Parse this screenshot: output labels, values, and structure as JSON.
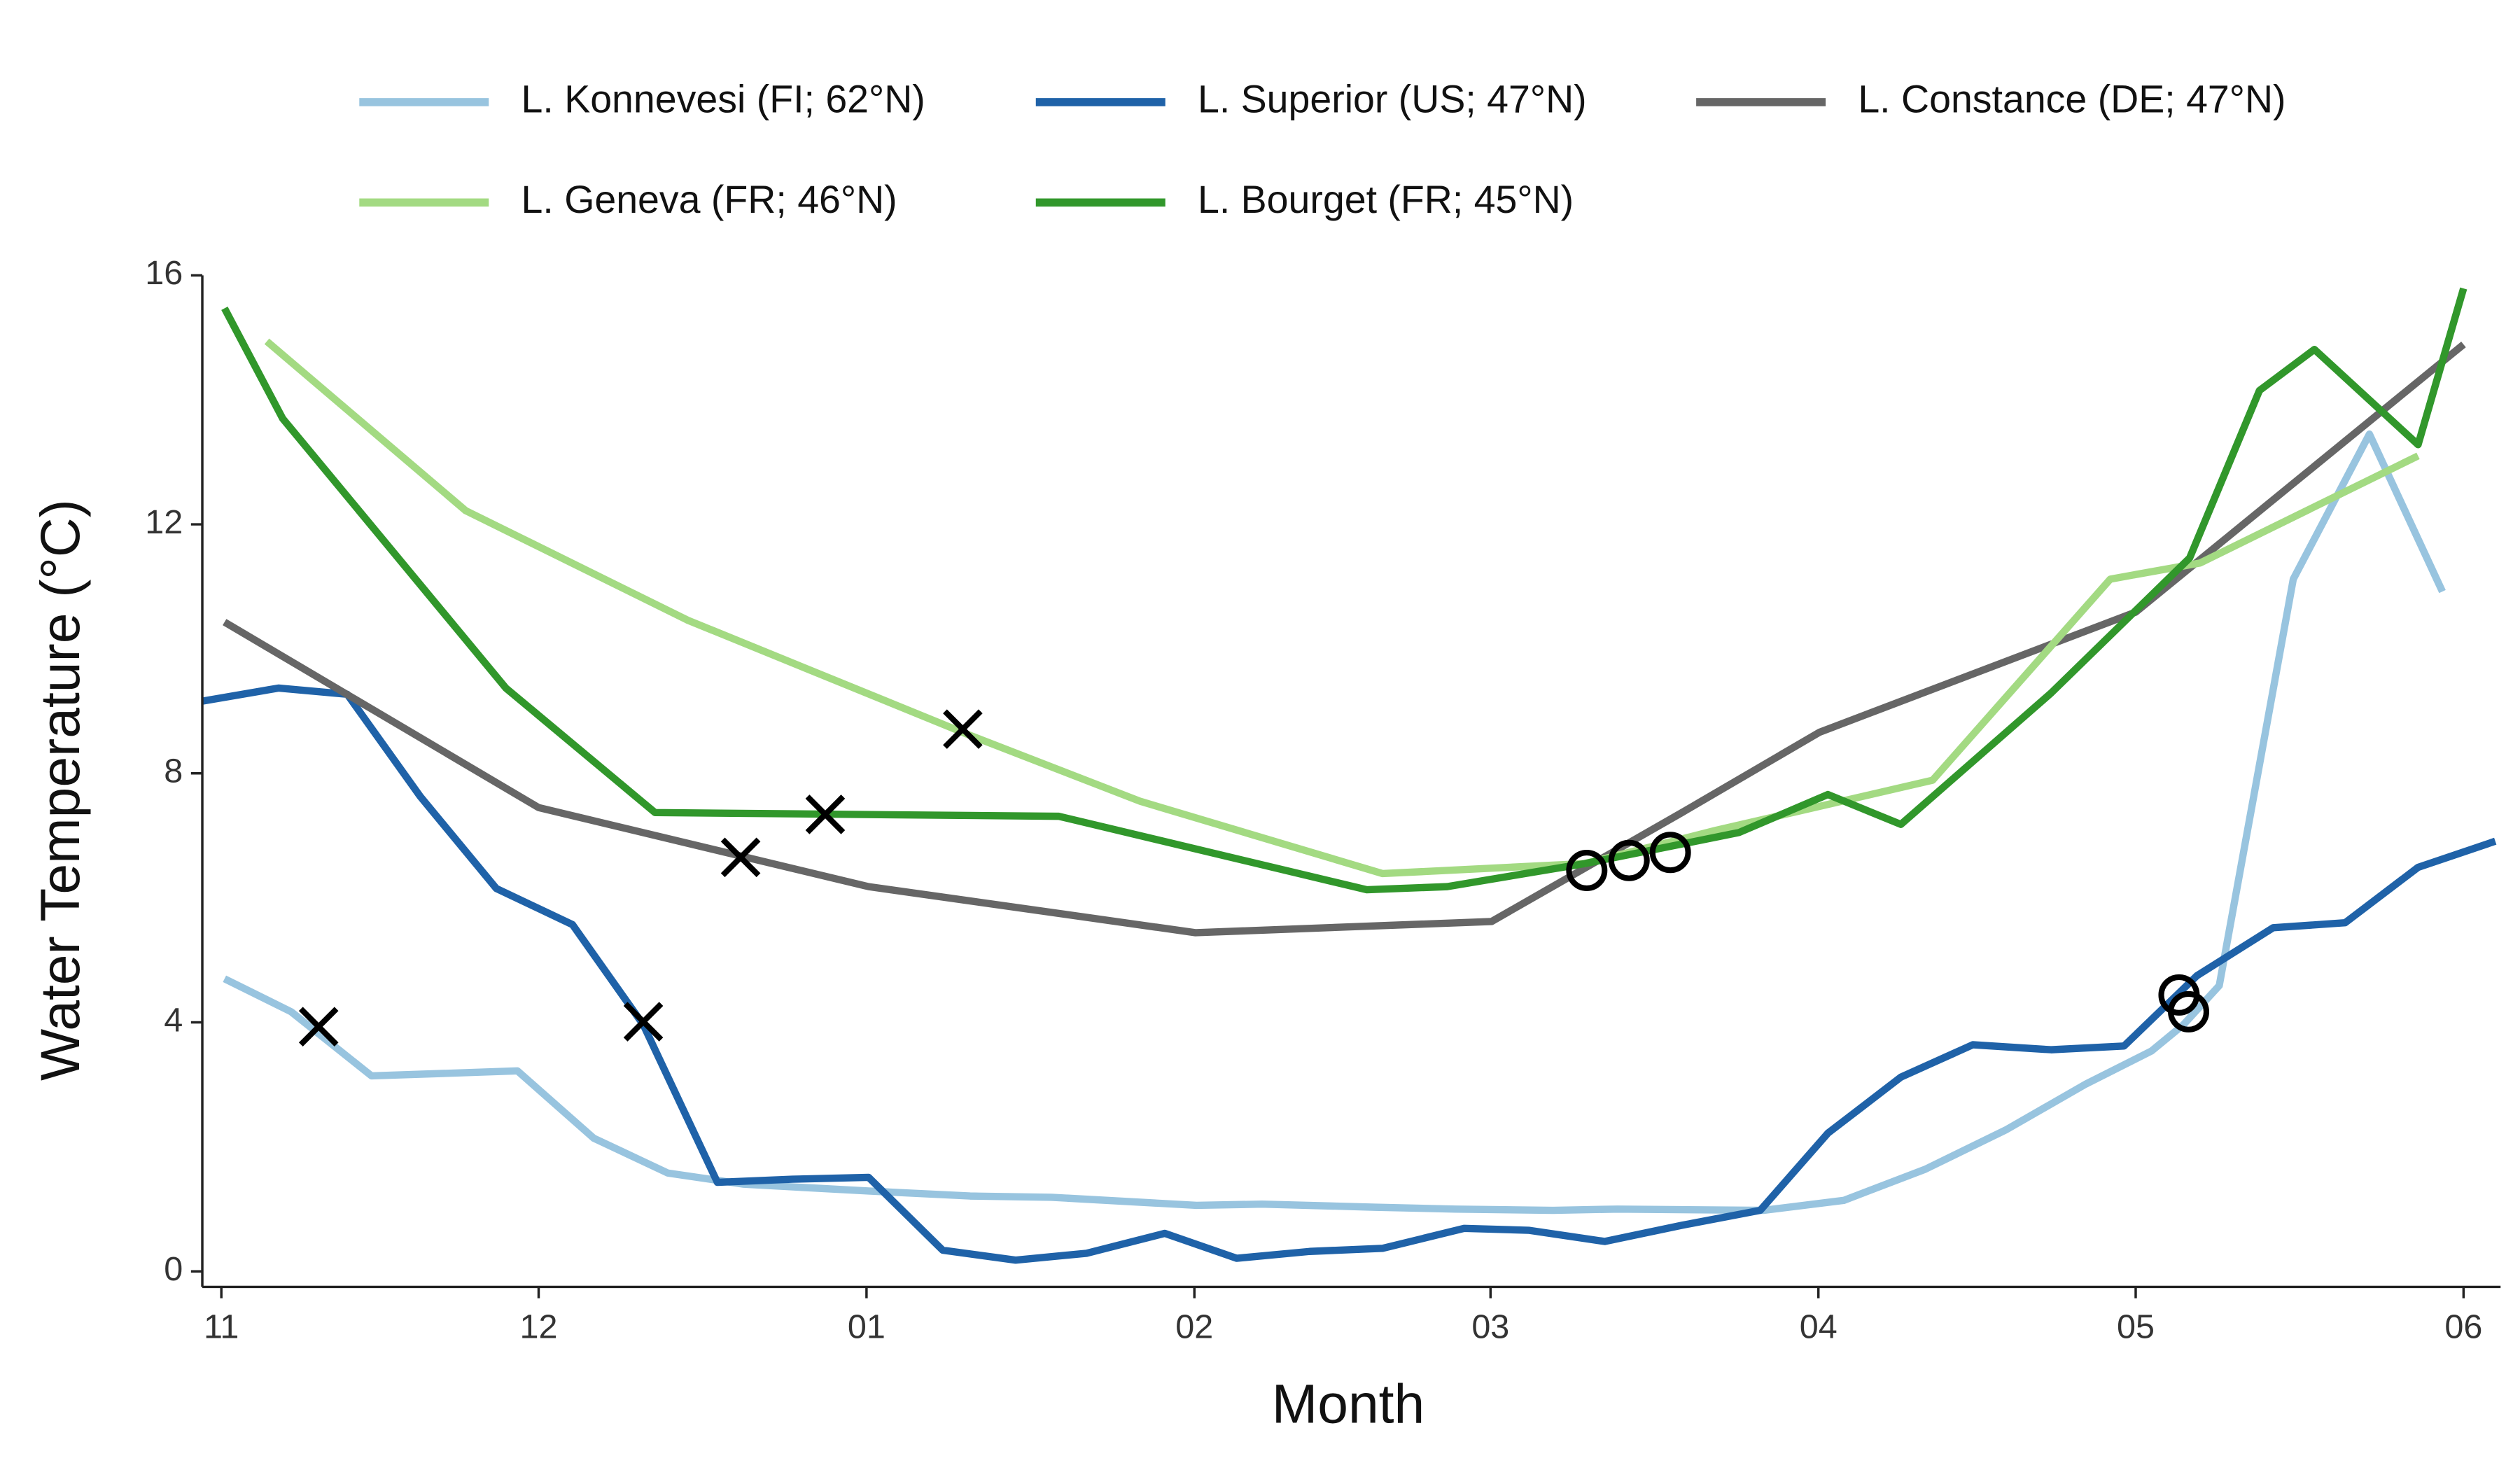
{
  "chart_data": {
    "type": "line",
    "xlabel": "Month",
    "ylabel": "Water Temperature (°C)",
    "xlim": [
      -1.8,
      215.5
    ],
    "ylim": [
      -0.25,
      16
    ],
    "xticks": [
      {
        "value": 0,
        "label": "11"
      },
      {
        "value": 30,
        "label": "12"
      },
      {
        "value": 61,
        "label": "01"
      },
      {
        "value": 92,
        "label": "02"
      },
      {
        "value": 120,
        "label": "03"
      },
      {
        "value": 151,
        "label": "04"
      },
      {
        "value": 181,
        "label": "05"
      },
      {
        "value": 212,
        "label": "06"
      }
    ],
    "yticks": [
      0,
      4,
      8,
      12,
      16
    ],
    "grid": false,
    "legend": "top",
    "series": [
      {
        "name": "L. Konnevesi (FI; 62°N)",
        "color": "#98c4df",
        "x": [
          0.3,
          6.6,
          14.2,
          28.0,
          35.2,
          42.2,
          49.4,
          61.2,
          70.8,
          78.5,
          92.2,
          98.4,
          109.1,
          116.7,
          125.9,
          132.0,
          145.8,
          153.4,
          161.1,
          168.7,
          176.3,
          182.5,
          185.5,
          188.9,
          195.9,
          203.1,
          210.0
        ],
        "values": [
          4.7,
          4.17,
          3.14,
          3.22,
          2.14,
          1.58,
          1.4,
          1.29,
          1.21,
          1.19,
          1.06,
          1.08,
          1.03,
          1.0,
          0.98,
          1.0,
          0.98,
          1.14,
          1.64,
          2.27,
          3.01,
          3.54,
          3.96,
          4.59,
          11.12,
          13.45,
          10.92
        ]
      },
      {
        "name": "L. Superior (US; 47°N)",
        "color": "#1f62a8",
        "x": [
          -1.8,
          5.4,
          11.9,
          18.8,
          26.0,
          33.2,
          39.9,
          46.9,
          54.0,
          61.2,
          68.2,
          75.1,
          81.8,
          89.2,
          96.0,
          102.9,
          109.8,
          117.5,
          123.6,
          130.8,
          138.1,
          145.5,
          151.9,
          158.8,
          165.6,
          173.0,
          179.9,
          186.8,
          194.0,
          200.8,
          207.7,
          215.0
        ],
        "values": [
          9.16,
          9.37,
          9.27,
          7.63,
          6.15,
          5.57,
          3.96,
          1.43,
          1.48,
          1.51,
          0.34,
          0.18,
          0.29,
          0.61,
          0.21,
          0.32,
          0.37,
          0.69,
          0.66,
          0.48,
          0.74,
          0.98,
          2.22,
          3.12,
          3.64,
          3.56,
          3.62,
          4.75,
          5.52,
          5.6,
          6.49,
          6.91
        ]
      },
      {
        "name": "L. Constance (DE; 47°N)",
        "color": "#666666",
        "x": [
          0.3,
          30.0,
          61.2,
          92.1,
          120.1,
          138.1,
          151.1,
          181.0,
          212.0
        ],
        "values": [
          10.43,
          7.45,
          6.18,
          5.44,
          5.62,
          7.37,
          8.66,
          10.59,
          14.89
        ]
      },
      {
        "name": "L. Geneva (FR; 46°N)",
        "color": "#a3da82",
        "x": [
          4.3,
          23.1,
          44.1,
          70.8,
          86.9,
          109.8,
          128.9,
          141.2,
          161.8,
          178.6,
          187.1,
          207.7
        ],
        "values": [
          14.94,
          12.22,
          10.46,
          8.61,
          7.55,
          6.39,
          6.55,
          7.08,
          7.89,
          11.12,
          11.38,
          13.1
        ]
      },
      {
        "name": "L. Bourget (FR; 45°N)",
        "color": "#31972b",
        "x": [
          0.3,
          5.8,
          26.9,
          41.0,
          79.2,
          108.3,
          115.9,
          128.9,
          143.5,
          151.9,
          158.8,
          173.0,
          186.1,
          192.7,
          197.9,
          207.7,
          212.0
        ],
        "values": [
          15.47,
          13.7,
          9.37,
          7.37,
          7.31,
          6.13,
          6.18,
          6.55,
          7.05,
          7.66,
          7.18,
          9.29,
          11.46,
          14.15,
          14.81,
          13.28,
          15.79
        ]
      }
    ],
    "point_markers": [
      {
        "marker": "x",
        "color": "#000000",
        "x": [
          9.2,
          39.9,
          49.1,
          57.1,
          70.1
        ],
        "values": [
          3.93,
          4.01,
          6.65,
          7.34,
          8.71
        ]
      },
      {
        "marker": "o",
        "color": "#000000",
        "x": [
          129.1,
          133.1,
          137.0,
          185.1,
          186.0
        ],
        "values": [
          6.44,
          6.6,
          6.73,
          4.44,
          4.17
        ]
      }
    ]
  }
}
